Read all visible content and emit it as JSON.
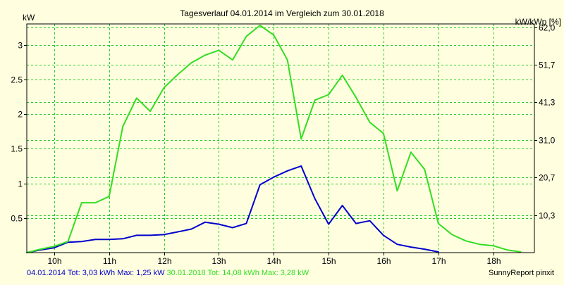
{
  "chart_data": {
    "type": "line",
    "title": "Tagesverlauf 04.01.2014 im Vergleich zum 30.01.2018",
    "ylabel_left": "kW",
    "ylabel_right": "kW/kWp [%]",
    "x_ticks": [
      "10h",
      "11h",
      "12h",
      "13h",
      "14h",
      "15h",
      "16h",
      "17h",
      "18h"
    ],
    "x_tick_hours": [
      10,
      11,
      12,
      13,
      14,
      15,
      16,
      17,
      18
    ],
    "xlim": [
      9.5,
      18.75
    ],
    "ylim": [
      0,
      3.3
    ],
    "y_ticks_left": [
      0.5,
      1,
      1.5,
      2,
      2.5,
      3
    ],
    "y_ticks_left_labels": [
      "0.5",
      "1",
      "1.5",
      "2",
      "2.5",
      "3"
    ],
    "y_ticks_right_values": [
      0.542,
      1.084,
      1.626,
      2.168,
      2.71,
      3.252
    ],
    "y_ticks_right_labels": [
      "10,3",
      "20,7",
      "31,0",
      "41,3",
      "51,7",
      "62,0"
    ],
    "grid": true,
    "background": "#ffffe0",
    "series": [
      {
        "name": "04.01.2014",
        "color": "#0000cc",
        "points": [
          [
            9.5,
            0
          ],
          [
            9.75,
            0.04
          ],
          [
            10.0,
            0.07
          ],
          [
            10.25,
            0.15
          ],
          [
            10.5,
            0.16
          ],
          [
            10.75,
            0.19
          ],
          [
            11.0,
            0.19
          ],
          [
            11.25,
            0.2
          ],
          [
            11.5,
            0.25
          ],
          [
            11.75,
            0.25
          ],
          [
            12.0,
            0.26
          ],
          [
            12.25,
            0.3
          ],
          [
            12.5,
            0.34
          ],
          [
            12.75,
            0.44
          ],
          [
            13.0,
            0.41
          ],
          [
            13.25,
            0.36
          ],
          [
            13.5,
            0.42
          ],
          [
            13.75,
            0.98
          ],
          [
            14.0,
            1.09
          ],
          [
            14.25,
            1.18
          ],
          [
            14.5,
            1.25
          ],
          [
            14.75,
            0.78
          ],
          [
            15.0,
            0.41
          ],
          [
            15.25,
            0.68
          ],
          [
            15.5,
            0.42
          ],
          [
            15.75,
            0.46
          ],
          [
            16.0,
            0.25
          ],
          [
            16.25,
            0.12
          ],
          [
            16.5,
            0.08
          ],
          [
            16.75,
            0.05
          ],
          [
            17.0,
            0.01
          ]
        ]
      },
      {
        "name": "30.01.2018",
        "color": "#33dd22",
        "points": [
          [
            9.5,
            0
          ],
          [
            9.75,
            0.05
          ],
          [
            10.0,
            0.09
          ],
          [
            10.25,
            0.16
          ],
          [
            10.5,
            0.72
          ],
          [
            10.75,
            0.72
          ],
          [
            11.0,
            0.81
          ],
          [
            11.25,
            1.82
          ],
          [
            11.5,
            2.23
          ],
          [
            11.75,
            2.04
          ],
          [
            12.0,
            2.38
          ],
          [
            12.25,
            2.57
          ],
          [
            12.5,
            2.74
          ],
          [
            12.75,
            2.85
          ],
          [
            13.0,
            2.92
          ],
          [
            13.25,
            2.78
          ],
          [
            13.5,
            3.12
          ],
          [
            13.75,
            3.28
          ],
          [
            14.0,
            3.14
          ],
          [
            14.25,
            2.78
          ],
          [
            14.5,
            1.64
          ],
          [
            14.75,
            2.2
          ],
          [
            15.0,
            2.28
          ],
          [
            15.25,
            2.56
          ],
          [
            15.5,
            2.24
          ],
          [
            15.75,
            1.88
          ],
          [
            16.0,
            1.72
          ],
          [
            16.25,
            0.89
          ],
          [
            16.5,
            1.45
          ],
          [
            16.75,
            1.2
          ],
          [
            17.0,
            0.42
          ],
          [
            17.25,
            0.26
          ],
          [
            17.5,
            0.17
          ],
          [
            17.75,
            0.12
          ],
          [
            18.0,
            0.1
          ],
          [
            18.25,
            0.04
          ],
          [
            18.5,
            0.01
          ]
        ]
      }
    ]
  },
  "footer": {
    "series1_text": "04.01.2014 Tot: 3,03 kWh Max: 1,25 kW",
    "series1_color": "#0000cc",
    "series2_text": "30.01.2018 Tot: 14,08 kWh Max: 3,28 kW",
    "series2_color": "#33dd22",
    "credit": "SunnyReport pinxit"
  }
}
